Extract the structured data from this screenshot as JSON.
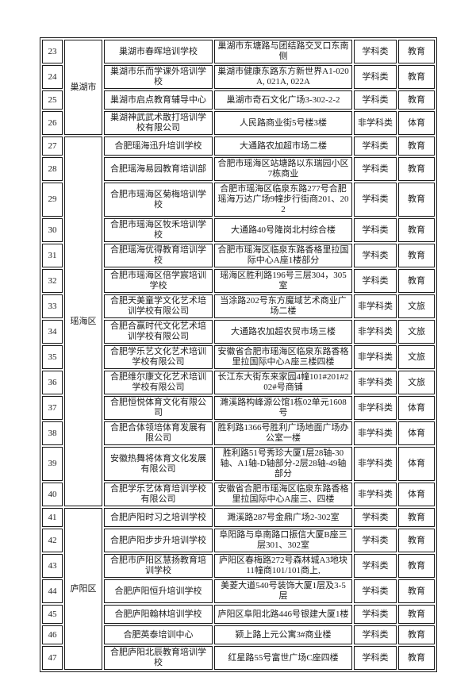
{
  "document": {
    "description_labels": {
      "category_academic": "学科类",
      "category_non_academic": "非学科类",
      "type_education": "教育",
      "type_sports": "体育",
      "type_culture_tourism": "文旅"
    },
    "colors": {
      "page_background": "#ffffff",
      "border": "#1a1a1a",
      "text": "#1c1c1c"
    }
  },
  "table": {
    "districts": [
      {
        "label": "巢湖市",
        "row_start": 23,
        "row_end": 26
      },
      {
        "label": "瑶海区",
        "row_start": 27,
        "row_end": 40
      },
      {
        "label": "庐阳区",
        "row_start": 41,
        "row_end": 47
      }
    ],
    "rows": [
      {
        "num": "23",
        "district": "巢湖市",
        "district_rowspan": 4,
        "name": "巢湖市春晖培训学校",
        "address": "巢湖市东塘路与团结路交叉口东南侧",
        "category": "学科类",
        "type": "教育"
      },
      {
        "num": "24",
        "name": "巢湖市乐而学课外培训学校",
        "address": "巢湖市健康东路东方新世界A1-020A, 021A, 022A",
        "category": "学科类",
        "type": "教育"
      },
      {
        "num": "25",
        "name": "巢湖市启点教育辅导中心",
        "address": "巢湖市奇石文化广场3-302-2-2",
        "category": "学科类",
        "type": "教育"
      },
      {
        "num": "26",
        "name": "巢湖神武武术散打培训学校有限公司",
        "address": "人民路商业街5号楼3楼",
        "category": "非学科类",
        "type": "体育"
      },
      {
        "num": "27",
        "district": "瑶海区",
        "district_rowspan": 14,
        "name": "合肥瑶海迅升培训学校",
        "address": "大通路农加超市场二楼",
        "category": "学科类",
        "type": "教育"
      },
      {
        "num": "28",
        "name": "合肥瑶海易园教育培训部",
        "address": "合肥市瑶海区站塘路以东瑞园小区7栋商业",
        "category": "学科类",
        "type": "教育"
      },
      {
        "num": "29",
        "name": "合肥市瑶海区菊梅培训学校",
        "address": "合肥市瑶海区临泉东路277号合肥瑶海万达广场9幢步行街商201、202",
        "category": "学科类",
        "type": "教育"
      },
      {
        "num": "30",
        "name": "合肥市瑶海区牧禾培训学校",
        "address": "大通路40号隆岗北村综合楼",
        "category": "学科类",
        "type": "教育"
      },
      {
        "num": "31",
        "name": "合肥瑶海优得教育培训学校",
        "address": "合肥市瑶海区临泉东路香格里拉国际中心A座1楼部分",
        "category": "学科类",
        "type": "教育"
      },
      {
        "num": "32",
        "name": "合肥市瑶海区倍学宸培训学校",
        "address": "瑶海区胜利路196号三层304，305室",
        "category": "学科类",
        "type": "教育"
      },
      {
        "num": "33",
        "name": "合肥天美童学文化艺术培训学校有限公司",
        "address": "当涂路202号东方魔域艺术商业广场二楼",
        "category": "非学科类",
        "type": "文旅"
      },
      {
        "num": "34",
        "name": "合肥合赢时代文化艺术培训学校有限公司",
        "address": "大通路农加超农贸市场三楼",
        "category": "非学科类",
        "type": "文旅"
      },
      {
        "num": "35",
        "name": "合肥学乐艺文化艺术培训学校有限公司",
        "address": "安徽省合肥市瑶海区临泉东路香格里拉国际中心A座三楼四楼",
        "category": "非学科类",
        "type": "文旅"
      },
      {
        "num": "36",
        "name": "合肥维尔康文化艺术培训学校有限公司",
        "address": "长江东大街东来家园4幢101#201#202#号商铺",
        "category": "非学科类",
        "type": "文旅"
      },
      {
        "num": "37",
        "name": "合肥恒悦体育文化有限公司",
        "address": "濉溪路构峰源公馆1栋02单元1608号",
        "category": "非学科类",
        "type": "体育"
      },
      {
        "num": "38",
        "name": "合肥合体领培体育发展有限公司",
        "address": "胜利路1366号胜利广场地面广场办公室一楼",
        "category": "非学科类",
        "type": "体育"
      },
      {
        "num": "39",
        "name": "安徽热舞将体育文化发展有限公司",
        "address": "胜利路51号秀珍大厦1层28轴-30轴、A1轴-D轴部分-2层28轴-49轴部分",
        "category": "非学科类",
        "type": "体育"
      },
      {
        "num": "40",
        "name": "合肥学乐艺体育培训学校有限公司",
        "address": "安徽省合肥市瑶海区临泉东路香格里拉国际中心A座三、四楼",
        "category": "非学科类",
        "type": "体育"
      },
      {
        "num": "41",
        "district": "庐阳区",
        "district_rowspan": 7,
        "name": "合肥庐阳时习之培训学校",
        "address": "濉溪路287号金鼎广场2-302室",
        "category": "学科类",
        "type": "教育"
      },
      {
        "num": "42",
        "name": "合肥庐阳步步升培训学校",
        "address": "阜阳路与阜南路口振信大厦B座三层301、302室",
        "category": "学科类",
        "type": "教育"
      },
      {
        "num": "43",
        "name": "合肥市庐阳区慧扬教育培训学校",
        "address": "庐阳区春梅路272号森林城A3地块11幢商101/101商上,",
        "category": "学科类",
        "type": "教育"
      },
      {
        "num": "44",
        "name": "合肥庐阳恒升培训学校",
        "address": "美菱大道540号装饰大厦1层及3-5层",
        "category": "学科类",
        "type": "教育"
      },
      {
        "num": "45",
        "name": "合肥庐阳翰林培训学校",
        "address": "庐阳区阜阳北路446号银建大厦1楼",
        "category": "学科类",
        "type": "教育"
      },
      {
        "num": "46",
        "name": "合肥英泰培训中心",
        "address": "颍上路上元公寓3#商业楼",
        "category": "学科类",
        "type": "教育"
      },
      {
        "num": "47",
        "name": "合肥庐阳北辰教育培训学校",
        "address": "红星路55号富世广场C座四楼",
        "category": "学科类",
        "type": "教育"
      }
    ]
  }
}
